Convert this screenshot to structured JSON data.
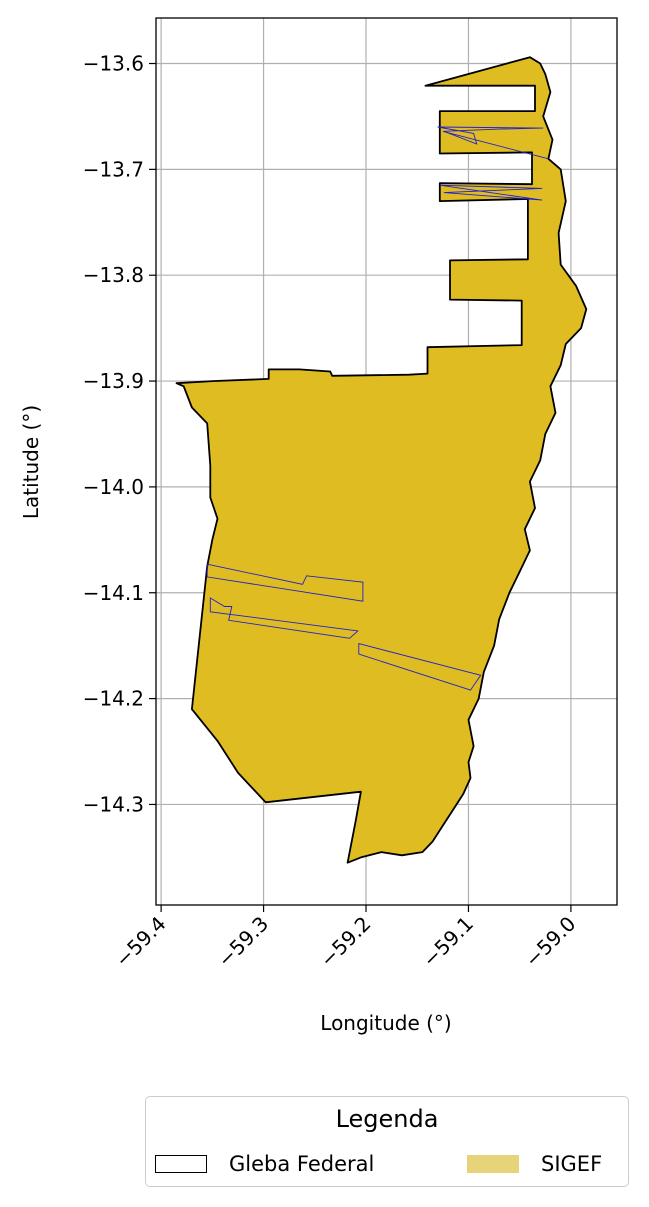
{
  "chart_data": {
    "type": "map",
    "xlabel": "Longitude (°)",
    "ylabel": "Latitude (°)",
    "xlim": [
      -59.405,
      -58.955
    ],
    "ylim": [
      -14.395,
      -13.557
    ],
    "xticks": [
      -59.4,
      -59.3,
      -59.2,
      -59.1,
      -59.0
    ],
    "xtick_labels": [
      "−59.4",
      "−59.3",
      "−59.2",
      "−59.1",
      "−59.0"
    ],
    "yticks": [
      -13.6,
      -13.7,
      -13.8,
      -13.9,
      -14.0,
      -14.1,
      -14.2,
      -14.3
    ],
    "ytick_labels": [
      "−13.6",
      "−13.7",
      "−13.8",
      "−13.9",
      "−14.0",
      "−14.1",
      "−14.2",
      "−14.3"
    ],
    "grid": true,
    "legend": {
      "title": "Legenda",
      "placement": "below-plot",
      "entries": [
        {
          "label": "Gleba Federal",
          "style": "outline",
          "color": "#000000"
        },
        {
          "label": "SIGEF",
          "style": "fill",
          "color": "#e7d47a"
        }
      ]
    },
    "layers": [
      {
        "name": "Gleba Federal",
        "edgecolor": "#000000",
        "facecolor": "#dfbc22",
        "coords": [
          [
            -59.385,
            -13.902
          ],
          [
            -59.35,
            -13.9
          ],
          [
            -59.295,
            -13.898
          ],
          [
            -59.295,
            -13.889
          ],
          [
            -59.265,
            -13.889
          ],
          [
            -59.235,
            -13.891
          ],
          [
            -59.233,
            -13.895
          ],
          [
            -59.158,
            -13.894
          ],
          [
            -59.14,
            -13.893
          ],
          [
            -59.14,
            -13.868
          ],
          [
            -59.048,
            -13.866
          ],
          [
            -59.048,
            -13.824
          ],
          [
            -59.118,
            -13.823
          ],
          [
            -59.118,
            -13.786
          ],
          [
            -59.042,
            -13.785
          ],
          [
            -59.042,
            -13.728
          ],
          [
            -59.128,
            -13.73
          ],
          [
            -59.128,
            -13.713
          ],
          [
            -59.038,
            -13.714
          ],
          [
            -59.038,
            -13.684
          ],
          [
            -59.128,
            -13.685
          ],
          [
            -59.128,
            -13.645
          ],
          [
            -59.035,
            -13.645
          ],
          [
            -59.035,
            -13.621
          ],
          [
            -59.142,
            -13.621
          ],
          [
            -59.04,
            -13.594
          ],
          [
            -59.03,
            -13.6
          ],
          [
            -59.025,
            -13.61
          ],
          [
            -59.02,
            -13.627
          ],
          [
            -59.027,
            -13.65
          ],
          [
            -59.018,
            -13.672
          ],
          [
            -59.022,
            -13.69
          ],
          [
            -59.01,
            -13.7
          ],
          [
            -59.005,
            -13.73
          ],
          [
            -59.012,
            -13.76
          ],
          [
            -59.01,
            -13.79
          ],
          [
            -58.995,
            -13.81
          ],
          [
            -58.985,
            -13.832
          ],
          [
            -58.99,
            -13.85
          ],
          [
            -59.005,
            -13.865
          ],
          [
            -59.01,
            -13.885
          ],
          [
            -59.02,
            -13.905
          ],
          [
            -59.015,
            -13.93
          ],
          [
            -59.025,
            -13.95
          ],
          [
            -59.03,
            -13.975
          ],
          [
            -59.04,
            -13.995
          ],
          [
            -59.035,
            -14.02
          ],
          [
            -59.045,
            -14.04
          ],
          [
            -59.04,
            -14.06
          ],
          [
            -59.05,
            -14.08
          ],
          [
            -59.06,
            -14.1
          ],
          [
            -59.07,
            -14.125
          ],
          [
            -59.075,
            -14.15
          ],
          [
            -59.085,
            -14.175
          ],
          [
            -59.09,
            -14.2
          ],
          [
            -59.1,
            -14.22
          ],
          [
            -59.095,
            -14.245
          ],
          [
            -59.1,
            -14.26
          ],
          [
            -59.098,
            -14.275
          ],
          [
            -59.105,
            -14.29
          ],
          [
            -59.115,
            -14.305
          ],
          [
            -59.125,
            -14.32
          ],
          [
            -59.135,
            -14.335
          ],
          [
            -59.145,
            -14.345
          ],
          [
            -59.165,
            -14.348
          ],
          [
            -59.185,
            -14.345
          ],
          [
            -59.205,
            -14.35
          ],
          [
            -59.218,
            -14.355
          ],
          [
            -59.21,
            -14.315
          ],
          [
            -59.205,
            -14.288
          ],
          [
            -59.298,
            -14.298
          ],
          [
            -59.325,
            -14.27
          ],
          [
            -59.345,
            -14.24
          ],
          [
            -59.37,
            -14.21
          ],
          [
            -59.355,
            -14.075
          ],
          [
            -59.35,
            -14.05
          ],
          [
            -59.345,
            -14.03
          ],
          [
            -59.352,
            -14.01
          ],
          [
            -59.352,
            -13.98
          ],
          [
            -59.355,
            -13.94
          ],
          [
            -59.37,
            -13.925
          ],
          [
            -59.378,
            -13.905
          ],
          [
            -59.385,
            -13.902
          ]
        ]
      },
      {
        "name": "SIGEF",
        "edgecolor": "#2222cc",
        "facecolor": "none",
        "parcels": [
          [
            [
              -59.355,
              -14.073
            ],
            [
              -59.262,
              -14.092
            ],
            [
              -59.258,
              -14.084
            ],
            [
              -59.203,
              -14.09
            ],
            [
              -59.203,
              -14.108
            ],
            [
              -59.355,
              -14.085
            ]
          ],
          [
            [
              -59.352,
              -14.105
            ],
            [
              -59.338,
              -14.113
            ],
            [
              -59.331,
              -14.113
            ],
            [
              -59.334,
              -14.126
            ],
            [
              -59.216,
              -14.143
            ],
            [
              -59.208,
              -14.136
            ],
            [
              -59.352,
              -14.118
            ]
          ],
          [
            [
              -59.207,
              -14.148
            ],
            [
              -59.088,
              -14.178
            ],
            [
              -59.098,
              -14.192
            ],
            [
              -59.207,
              -14.158
            ]
          ],
          [
            [
              -59.13,
              -13.66
            ],
            [
              -59.095,
              -13.666
            ],
            [
              -59.092,
              -13.676
            ],
            [
              -59.124,
              -13.664
            ],
            [
              -59.07,
              -13.662
            ],
            [
              -59.027,
              -13.661
            ]
          ],
          [
            [
              -59.125,
              -13.664
            ],
            [
              -59.022,
              -13.69
            ]
          ],
          [
            [
              -59.128,
              -13.715
            ],
            [
              -59.028,
              -13.718
            ],
            [
              -59.124,
              -13.722
            ],
            [
              -59.028,
              -13.729
            ]
          ]
        ]
      }
    ]
  }
}
